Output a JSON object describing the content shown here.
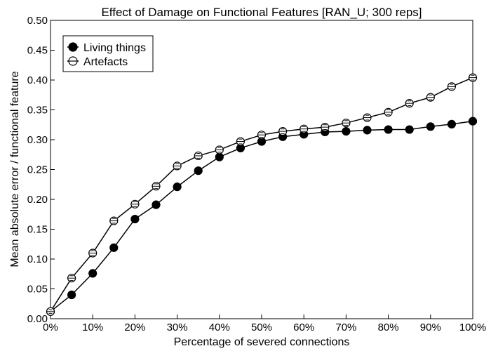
{
  "chart_data": {
    "type": "line",
    "title": "Effect of Damage on Functional Features [RAN_U; 300 reps]",
    "xlabel": "Percentage of severed connections",
    "ylabel": "Mean absolute error / functional feature",
    "xlim": [
      0,
      100
    ],
    "ylim": [
      0,
      0.5
    ],
    "x_ticks": [
      0,
      10,
      20,
      30,
      40,
      50,
      60,
      70,
      80,
      90,
      100
    ],
    "x_tick_labels": [
      "0%",
      "10%",
      "20%",
      "30%",
      "40%",
      "50%",
      "60%",
      "70%",
      "80%",
      "90%",
      "100%"
    ],
    "y_ticks": [
      0,
      0.05,
      0.1,
      0.15,
      0.2,
      0.25,
      0.3,
      0.35,
      0.4,
      0.45,
      0.5
    ],
    "y_tick_labels": [
      "0.00",
      "0.05",
      "0.10",
      "0.15",
      "0.20",
      "0.25",
      "0.30",
      "0.35",
      "0.40",
      "0.45",
      "0.50"
    ],
    "grid": false,
    "legend_position": "top-left",
    "x": [
      0,
      5,
      10,
      15,
      20,
      25,
      30,
      35,
      40,
      45,
      50,
      55,
      60,
      65,
      70,
      75,
      80,
      85,
      90,
      95,
      100
    ],
    "series": [
      {
        "name": "Living things",
        "marker": "filled-circle",
        "values": [
          0.012,
          0.04,
          0.076,
          0.119,
          0.167,
          0.191,
          0.221,
          0.248,
          0.271,
          0.286,
          0.297,
          0.305,
          0.309,
          0.313,
          0.314,
          0.316,
          0.317,
          0.317,
          0.322,
          0.326,
          0.331
        ],
        "errors": [
          0.002,
          0.002,
          0.002,
          0.003,
          0.003,
          0.003,
          0.003,
          0.003,
          0.003,
          0.003,
          0.003,
          0.003,
          0.003,
          0.003,
          0.003,
          0.003,
          0.003,
          0.003,
          0.003,
          0.003,
          0.003
        ]
      },
      {
        "name": "Artefacts",
        "marker": "open-circle",
        "values": [
          0.012,
          0.068,
          0.11,
          0.164,
          0.192,
          0.222,
          0.256,
          0.273,
          0.283,
          0.297,
          0.308,
          0.314,
          0.318,
          0.321,
          0.328,
          0.337,
          0.346,
          0.361,
          0.371,
          0.389,
          0.404
        ],
        "errors": [
          0.003,
          0.004,
          0.004,
          0.004,
          0.004,
          0.004,
          0.004,
          0.004,
          0.004,
          0.004,
          0.004,
          0.004,
          0.004,
          0.004,
          0.004,
          0.004,
          0.004,
          0.004,
          0.004,
          0.004,
          0.004
        ]
      }
    ]
  }
}
